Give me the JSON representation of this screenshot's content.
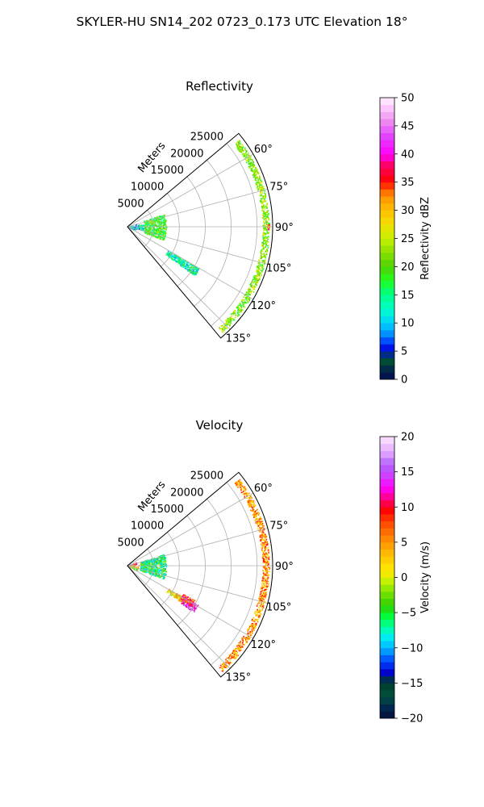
{
  "figure": {
    "suptitle": "SKYLER-HU  SN14_202  0723_0.173 UTC Elevation 18°"
  },
  "chart_data": [
    {
      "type": "polar-sector-scan",
      "title": "Reflectivity",
      "range_label": "Meters",
      "radial_ticks": [
        5000,
        10000,
        15000,
        20000,
        25000
      ],
      "radial_tick_labels": [
        "5000",
        "10000",
        "15000",
        "20000",
        "25000"
      ],
      "rmax": 28000,
      "theta_range_deg": [
        50,
        140
      ],
      "theta_direction": "clockwise",
      "theta_zero": "north",
      "angle_ticks": [
        60,
        75,
        90,
        105,
        120,
        135
      ],
      "angle_tick_labels": [
        "60°",
        "75°",
        "90°",
        "105°",
        "120°",
        "135°"
      ],
      "grid": true,
      "colorbar": {
        "label": "Reflectivity dBZ",
        "min": 0,
        "max": 50,
        "ticks": [
          0,
          5,
          10,
          15,
          20,
          25,
          30,
          35,
          40,
          45,
          50
        ],
        "tick_labels": [
          "0",
          "5",
          "10",
          "15",
          "20",
          "25",
          "30",
          "35",
          "40",
          "45",
          "50"
        ],
        "n_levels": 40
      },
      "echo_regions": [
        {
          "az": [
            68,
            112
          ],
          "range": [
            0,
            1800
          ],
          "value": 10
        },
        {
          "az": [
            78,
            102
          ],
          "range": [
            1800,
            3300
          ],
          "value": 12
        },
        {
          "az": [
            70,
            110
          ],
          "range": [
            3300,
            7500
          ],
          "value": 19
        },
        {
          "az": [
            120,
            126
          ],
          "range": [
            9000,
            16000
          ],
          "value": 14
        },
        {
          "az": [
            52,
            138
          ],
          "range": [
            26000,
            27300
          ],
          "value": 22
        },
        {
          "az": [
            89,
            91
          ],
          "range": [
            27000,
            27300
          ],
          "value": 36
        }
      ]
    },
    {
      "type": "polar-sector-scan",
      "title": "Velocity",
      "range_label": "Meters",
      "radial_ticks": [
        5000,
        10000,
        15000,
        20000,
        25000
      ],
      "radial_tick_labels": [
        "5000",
        "10000",
        "15000",
        "20000",
        "25000"
      ],
      "rmax": 28000,
      "theta_range_deg": [
        50,
        140
      ],
      "theta_direction": "clockwise",
      "theta_zero": "north",
      "angle_ticks": [
        60,
        75,
        90,
        105,
        120,
        135
      ],
      "angle_tick_labels": [
        "60°",
        "75°",
        "90°",
        "105°",
        "120°",
        "135°"
      ],
      "grid": true,
      "colorbar": {
        "label": "Velocity (m/s)",
        "min": -20,
        "max": 20,
        "ticks": [
          -20,
          -15,
          -10,
          -5,
          0,
          5,
          10,
          15,
          20
        ],
        "tick_labels": [
          "−20",
          "−15",
          "−10",
          "−5",
          "0",
          "5",
          "10",
          "15",
          "20"
        ],
        "n_levels": 40
      },
      "echo_regions": [
        {
          "az": [
            66,
            84
          ],
          "range": [
            0,
            1800
          ],
          "value": 12
        },
        {
          "az": [
            84,
            104
          ],
          "range": [
            0,
            2200
          ],
          "value": 3
        },
        {
          "az": [
            104,
            118
          ],
          "range": [
            0,
            2000
          ],
          "value": -3
        },
        {
          "az": [
            72,
            110
          ],
          "range": [
            2500,
            7500
          ],
          "value": -6
        },
        {
          "az": [
            119,
            124
          ],
          "range": [
            9000,
            12500
          ],
          "value": 2
        },
        {
          "az": [
            119,
            125
          ],
          "range": [
            12500,
            15500
          ],
          "value": 14
        },
        {
          "az": [
            117,
            122
          ],
          "range": [
            12000,
            14500
          ],
          "value": 9
        },
        {
          "az": [
            52,
            138
          ],
          "range": [
            26000,
            27300
          ],
          "value": 5
        }
      ]
    }
  ]
}
